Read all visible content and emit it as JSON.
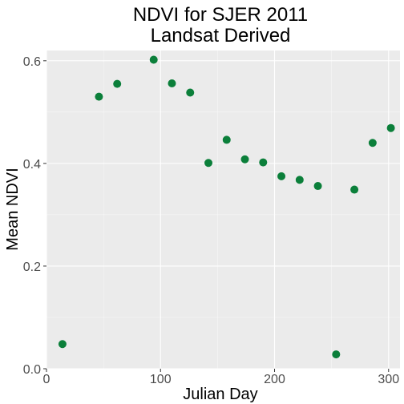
{
  "chart_data": {
    "type": "scatter",
    "title": "NDVI for SJER 2011",
    "subtitle": "Landsat Derived",
    "xlabel": "Julian Day",
    "ylabel": "Mean NDVI",
    "xlim": [
      0,
      310
    ],
    "ylim": [
      0,
      0.62
    ],
    "x_ticks": [
      0,
      100,
      200,
      300
    ],
    "x_tick_labels": [
      "0",
      "100",
      "200",
      "300"
    ],
    "y_ticks": [
      0,
      0.2,
      0.4,
      0.6
    ],
    "y_tick_labels": [
      "0.0",
      "0.2",
      "0.4",
      "0.6"
    ],
    "grid": true,
    "series": [
      {
        "color": "#0b7f3a",
        "points": [
          {
            "x": 14,
            "y": 0.048
          },
          {
            "x": 46,
            "y": 0.53
          },
          {
            "x": 62,
            "y": 0.555
          },
          {
            "x": 94,
            "y": 0.602
          },
          {
            "x": 110,
            "y": 0.556
          },
          {
            "x": 126,
            "y": 0.538
          },
          {
            "x": 142,
            "y": 0.401
          },
          {
            "x": 158,
            "y": 0.446
          },
          {
            "x": 174,
            "y": 0.408
          },
          {
            "x": 190,
            "y": 0.402
          },
          {
            "x": 206,
            "y": 0.375
          },
          {
            "x": 222,
            "y": 0.368
          },
          {
            "x": 238,
            "y": 0.356
          },
          {
            "x": 254,
            "y": 0.028
          },
          {
            "x": 270,
            "y": 0.349
          },
          {
            "x": 286,
            "y": 0.44
          },
          {
            "x": 302,
            "y": 0.469
          }
        ]
      }
    ]
  },
  "colors": {
    "panel_background": "#ebebeb",
    "grid_major": "#ffffff",
    "point": "#0b7f3a"
  }
}
